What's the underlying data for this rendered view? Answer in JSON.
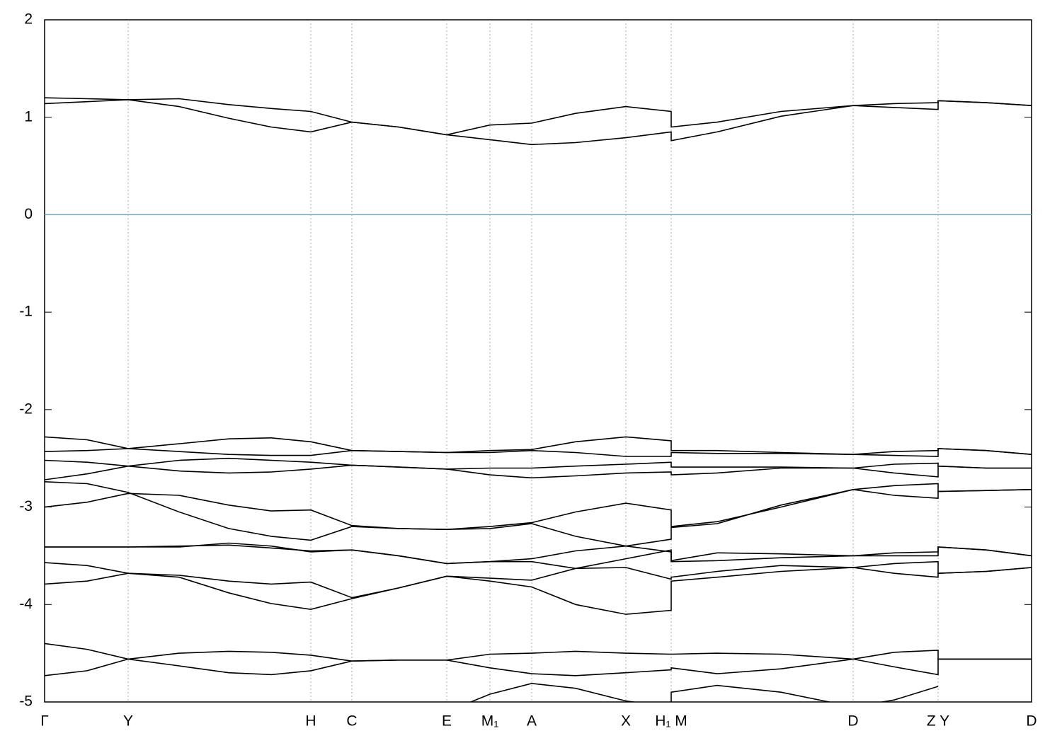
{
  "chart_data": {
    "type": "line",
    "x": [
      0,
      0.6,
      1.18,
      1.9,
      2.6,
      3.2,
      3.76,
      4.34,
      5.0,
      5.68,
      6.29,
      6.88,
      7.5,
      8.21,
      8.85,
      8.85,
      9.5,
      10.4,
      11.42,
      12.0,
      12.62,
      12.62,
      13.3,
      13.94
    ],
    "xlim": [
      0,
      13.94
    ],
    "xticks": [
      {
        "value": 0,
        "label": "Γ"
      },
      {
        "value": 1.18,
        "label": "Y"
      },
      {
        "value": 3.76,
        "label": "H"
      },
      {
        "value": 4.34,
        "label": "C"
      },
      {
        "value": 5.68,
        "label": "E"
      },
      {
        "value": 6.29,
        "label": "M₁"
      },
      {
        "value": 6.88,
        "label": "A"
      },
      {
        "value": 8.21,
        "label": "X"
      },
      {
        "value": 8.85,
        "label": "H₁ M"
      },
      {
        "value": 11.42,
        "label": "D"
      },
      {
        "value": 12.62,
        "label": "Z Y"
      },
      {
        "value": 13.94,
        "label": "D"
      }
    ],
    "ylim": [
      -5,
      2
    ],
    "yticks": [
      -5,
      -4,
      -3,
      -2,
      -1,
      0,
      1,
      2
    ],
    "x_grid": true,
    "fermi_level": 0,
    "fermi_color": "#5ab4c8",
    "series": [
      {
        "color": "#000000",
        "values": [
          1.2,
          1.19,
          1.18,
          1.19,
          1.13,
          1.09,
          1.06,
          0.95,
          0.9,
          0.82,
          0.92,
          0.94,
          1.04,
          1.11,
          1.06,
          0.9,
          0.95,
          1.06,
          1.12,
          1.14,
          1.15,
          1.17,
          1.15,
          1.12
        ]
      },
      {
        "color": "#000000",
        "values": [
          1.14,
          1.16,
          1.18,
          1.11,
          0.99,
          0.9,
          0.85,
          0.95,
          0.9,
          0.82,
          0.77,
          0.72,
          0.74,
          0.79,
          0.85,
          0.76,
          0.85,
          1.01,
          1.12,
          1.1,
          1.08,
          1.17,
          1.15,
          1.12
        ]
      },
      {
        "color": "#000000",
        "values": [
          -2.28,
          -2.31,
          -2.4,
          -2.35,
          -2.3,
          -2.29,
          -2.33,
          -2.42,
          -2.43,
          -2.44,
          -2.42,
          -2.41,
          -2.33,
          -2.28,
          -2.32,
          -2.42,
          -2.42,
          -2.44,
          -2.46,
          -2.43,
          -2.42,
          -2.4,
          -2.42,
          -2.46
        ]
      },
      {
        "color": "#000000",
        "values": [
          -2.43,
          -2.42,
          -2.4,
          -2.43,
          -2.46,
          -2.47,
          -2.47,
          -2.42,
          -2.43,
          -2.44,
          -2.44,
          -2.42,
          -2.44,
          -2.48,
          -2.48,
          -2.44,
          -2.45,
          -2.45,
          -2.46,
          -2.47,
          -2.48,
          -2.4,
          -2.42,
          -2.46
        ]
      },
      {
        "color": "#000000",
        "values": [
          -2.52,
          -2.54,
          -2.58,
          -2.52,
          -2.5,
          -2.52,
          -2.54,
          -2.57,
          -2.59,
          -2.61,
          -2.6,
          -2.6,
          -2.58,
          -2.56,
          -2.54,
          -2.59,
          -2.59,
          -2.59,
          -2.6,
          -2.56,
          -2.55,
          -2.58,
          -2.6,
          -2.6
        ]
      },
      {
        "color": "#000000",
        "values": [
          -2.72,
          -2.66,
          -2.58,
          -2.63,
          -2.65,
          -2.64,
          -2.61,
          -2.57,
          -2.59,
          -2.61,
          -2.67,
          -2.7,
          -2.68,
          -2.65,
          -2.64,
          -2.67,
          -2.65,
          -2.6,
          -2.6,
          -2.65,
          -2.69,
          -2.58,
          -2.6,
          -2.6
        ]
      },
      {
        "color": "#000000",
        "values": [
          -2.74,
          -2.76,
          -2.85,
          -3.05,
          -3.22,
          -3.3,
          -3.34,
          -3.2,
          -3.22,
          -3.23,
          -3.2,
          -3.16,
          -3.05,
          -2.96,
          -3.03,
          -3.2,
          -3.15,
          -3.0,
          -2.82,
          -2.78,
          -2.76,
          -2.84,
          -2.83,
          -2.82
        ]
      },
      {
        "color": "#000000",
        "values": [
          -3.0,
          -2.95,
          -2.86,
          -2.88,
          -2.98,
          -3.04,
          -3.03,
          -3.19,
          -3.22,
          -3.23,
          -3.22,
          -3.17,
          -3.3,
          -3.4,
          -3.33,
          -3.21,
          -3.17,
          -2.98,
          -2.82,
          -2.88,
          -2.91,
          -2.84,
          -2.83,
          -2.82
        ]
      },
      {
        "color": "#000000",
        "values": [
          -3.41,
          -3.41,
          -3.41,
          -3.41,
          -3.37,
          -3.4,
          -3.46,
          -3.44,
          -3.5,
          -3.58,
          -3.56,
          -3.53,
          -3.45,
          -3.4,
          -3.46,
          -3.55,
          -3.47,
          -3.48,
          -3.5,
          -3.47,
          -3.46,
          -3.41,
          -3.44,
          -3.5
        ]
      },
      {
        "color": "#000000",
        "values": [
          -3.41,
          -3.41,
          -3.41,
          -3.4,
          -3.39,
          -3.42,
          -3.45,
          -3.44,
          -3.5,
          -3.58,
          -3.56,
          -3.56,
          -3.63,
          -3.53,
          -3.44,
          -3.56,
          -3.55,
          -3.52,
          -3.5,
          -3.5,
          -3.5,
          -3.41,
          -3.44,
          -3.5
        ]
      },
      {
        "color": "#000000",
        "values": [
          -3.57,
          -3.6,
          -3.68,
          -3.7,
          -3.76,
          -3.79,
          -3.77,
          -3.93,
          -3.83,
          -3.71,
          -3.73,
          -3.75,
          -3.63,
          -3.62,
          -3.74,
          -3.72,
          -3.66,
          -3.6,
          -3.62,
          -3.58,
          -3.56,
          -3.68,
          -3.66,
          -3.62
        ]
      },
      {
        "color": "#000000",
        "values": [
          -3.79,
          -3.76,
          -3.68,
          -3.72,
          -3.88,
          -3.99,
          -4.05,
          -3.94,
          -3.83,
          -3.71,
          -3.76,
          -3.82,
          -4.0,
          -4.1,
          -4.06,
          -3.76,
          -3.72,
          -3.66,
          -3.62,
          -3.68,
          -3.72,
          -3.68,
          -3.66,
          -3.62
        ]
      },
      {
        "color": "#000000",
        "values": [
          -4.4,
          -4.46,
          -4.56,
          -4.5,
          -4.48,
          -4.49,
          -4.52,
          -4.58,
          -4.57,
          -4.57,
          -4.51,
          -4.5,
          -4.48,
          -4.5,
          -4.51,
          -4.51,
          -4.5,
          -4.51,
          -4.56,
          -4.49,
          -4.47,
          -4.56,
          -4.56,
          -4.56
        ]
      },
      {
        "color": "#000000",
        "values": [
          -4.73,
          -4.68,
          -4.56,
          -4.63,
          -4.7,
          -4.72,
          -4.68,
          -4.58,
          -4.57,
          -4.57,
          -4.65,
          -4.71,
          -4.73,
          -4.7,
          -4.67,
          -4.65,
          -4.71,
          -4.66,
          -4.56,
          -4.64,
          -4.72,
          -4.56,
          -4.56,
          -4.56
        ]
      },
      {
        "color": "#000000",
        "values": [
          null,
          null,
          null,
          null,
          null,
          null,
          null,
          null,
          null,
          -5.1,
          -4.92,
          -4.81,
          -4.86,
          -4.99,
          -5.05,
          -4.9,
          -4.83,
          -4.9,
          -5.05,
          -4.98,
          -4.84,
          null,
          null,
          null
        ]
      }
    ]
  }
}
